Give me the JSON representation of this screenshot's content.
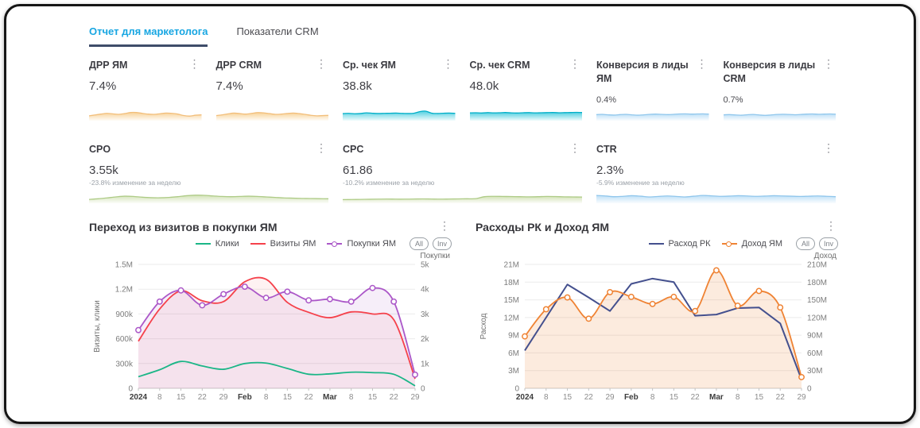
{
  "tabs": [
    {
      "label": "Отчет для маркетолога",
      "active": true
    },
    {
      "label": "Показатели CRM",
      "active": false
    }
  ],
  "kebab_icon": "⋮",
  "cards": [
    {
      "title": "ДРР ЯМ",
      "value": "7.4%",
      "spark": {
        "stroke": "#F2BE7A",
        "fill": "#F6C87F",
        "values": [
          28,
          35,
          42,
          48,
          44,
          40,
          46,
          55,
          55,
          48,
          42,
          40,
          45,
          50,
          48,
          42,
          30,
          26,
          33,
          36
        ]
      }
    },
    {
      "title": "ДРР CRM",
      "value": "7.4%",
      "spark": {
        "stroke": "#F2BE7A",
        "fill": "#F6C87F",
        "values": [
          30,
          36,
          44,
          50,
          46,
          42,
          48,
          54,
          52,
          46,
          40,
          42,
          47,
          50,
          46,
          40,
          32,
          28,
          30,
          32
        ]
      }
    },
    {
      "title": "Ср. чек ЯМ",
      "value": "38.8k",
      "spark": {
        "stroke": "#00AEC7",
        "fill": "#27C4D9",
        "values": [
          46,
          48,
          45,
          47,
          52,
          49,
          47,
          48,
          49,
          50,
          48,
          47,
          49,
          62,
          66,
          50,
          47,
          49,
          50,
          48
        ]
      }
    },
    {
      "title": "Ср. чек CRM",
      "value": "48.0k",
      "spark": {
        "stroke": "#00AEC7",
        "fill": "#27C4D9",
        "values": [
          52,
          53,
          51,
          54,
          52,
          53,
          55,
          52,
          51,
          53,
          54,
          52,
          53,
          54,
          55,
          53,
          54,
          55,
          56,
          55
        ]
      }
    },
    {
      "title": "Конверсия в лиды ЯМ",
      "value": "0.4%",
      "small_value": true,
      "spark": {
        "stroke": "#8FC6EC",
        "fill": "#AFD9F5",
        "values": [
          38,
          40,
          36,
          34,
          38,
          40,
          36,
          33,
          36,
          40,
          42,
          40,
          38,
          40,
          43,
          44,
          42,
          43,
          44,
          42
        ]
      }
    },
    {
      "title": "Конверсия в лиды CRM",
      "value": "0.7%",
      "small_value": true,
      "spark": {
        "stroke": "#8FC6EC",
        "fill": "#AFD9F5",
        "values": [
          36,
          38,
          35,
          33,
          37,
          39,
          35,
          32,
          35,
          39,
          41,
          39,
          37,
          39,
          42,
          43,
          41,
          42,
          43,
          41
        ]
      }
    },
    {
      "title": "CPO",
      "value": "3.55k",
      "delta": "-23.8% изменение за неделю",
      "wide": true,
      "spark": {
        "stroke": "#AECB86",
        "fill": "#C9DCA6",
        "values": [
          20,
          25,
          32,
          40,
          46,
          44,
          38,
          34,
          33,
          36,
          42,
          50,
          54,
          53,
          48,
          44,
          42,
          44,
          46,
          44,
          40,
          36,
          32,
          30,
          28,
          27,
          26,
          25
        ]
      }
    },
    {
      "title": "CPC",
      "value": "61.86",
      "delta": "-10.2% изменение за неделю",
      "wide": true,
      "spark": {
        "stroke": "#AECB86",
        "fill": "#C9DCA6",
        "values": [
          18,
          19,
          20,
          21,
          22,
          23,
          22,
          22,
          23,
          24,
          23,
          22,
          23,
          24,
          25,
          26,
          42,
          45,
          44,
          43,
          42,
          41,
          42,
          44,
          43,
          41,
          40,
          39
        ]
      }
    },
    {
      "title": "CTR",
      "value": "2.3%",
      "delta": "-5.9% изменение за неделю",
      "wide": true,
      "spark": {
        "stroke": "#8FC6EC",
        "fill": "#AFD9F5",
        "values": [
          52,
          48,
          42,
          45,
          50,
          46,
          40,
          44,
          48,
          44,
          40,
          46,
          52,
          49,
          45,
          47,
          50,
          48,
          45,
          47,
          50,
          48,
          46,
          44,
          46,
          48,
          45,
          42
        ]
      }
    }
  ],
  "chart_data": [
    {
      "type": "line",
      "title": "Переход из визитов в покупки ЯМ",
      "buttons": [
        "All",
        "Inv"
      ],
      "x_labels": [
        "2024",
        "8",
        "15",
        "22",
        "29",
        "Feb",
        "8",
        "15",
        "22",
        "Mar",
        "8",
        "15",
        "22",
        "29"
      ],
      "x_bold_indices": [
        0,
        5,
        9
      ],
      "left_axis": {
        "title": "Визиты, клики",
        "min": 0,
        "max": 1500000,
        "ticks": [
          "0",
          "300k",
          "600k",
          "900k",
          "1.2M",
          "1.5M"
        ]
      },
      "right_axis": {
        "title": "Покупки",
        "min": 0,
        "max": 5000,
        "ticks": [
          "0",
          "1k",
          "2k",
          "3k",
          "4k",
          "5k"
        ]
      },
      "series": [
        {
          "name": "Клики",
          "color": "#1BB687",
          "axis": "left",
          "smooth": true,
          "markers": false,
          "values": [
            140000,
            225000,
            325000,
            270000,
            230000,
            300000,
            305000,
            240000,
            170000,
            175000,
            195000,
            190000,
            170000,
            30000
          ]
        },
        {
          "name": "Визиты ЯМ",
          "color": "#F5414B",
          "axis": "left",
          "smooth": true,
          "markers": false,
          "area": "rgba(245,65,75,0.07)",
          "values": [
            570000,
            960000,
            1180000,
            1060000,
            1050000,
            1290000,
            1320000,
            1040000,
            920000,
            855000,
            925000,
            900000,
            830000,
            115000
          ]
        },
        {
          "name": "Покупки ЯМ",
          "color": "#AB57C8",
          "axis": "right",
          "smooth": true,
          "markers": true,
          "area": "rgba(171,87,200,0.10)",
          "values": [
            2350,
            3500,
            3950,
            3350,
            3800,
            4100,
            3650,
            3900,
            3550,
            3600,
            3500,
            4050,
            3500,
            550
          ]
        }
      ]
    },
    {
      "type": "line",
      "title": "Расходы РК и Доход ЯМ",
      "buttons": [
        "All",
        "Inv"
      ],
      "x_labels": [
        "2024",
        "8",
        "15",
        "22",
        "29",
        "Feb",
        "8",
        "15",
        "22",
        "Mar",
        "8",
        "15",
        "22",
        "29"
      ],
      "x_bold_indices": [
        0,
        5,
        9
      ],
      "left_axis": {
        "title": "Расход",
        "min": 0,
        "max": 21000000,
        "ticks": [
          "0",
          "3M",
          "6M",
          "9M",
          "12M",
          "15M",
          "18M",
          "21M"
        ]
      },
      "right_axis": {
        "title": "Доход",
        "min": 0,
        "max": 210000000,
        "ticks": [
          "0",
          "30M",
          "60M",
          "90M",
          "120M",
          "150M",
          "180M",
          "210M"
        ]
      },
      "series": [
        {
          "name": "Расход РК",
          "color": "#44508E",
          "axis": "left",
          "smooth": false,
          "markers": false,
          "values": [
            6400000,
            12000000,
            17600000,
            15400000,
            13100000,
            17700000,
            18600000,
            18000000,
            12300000,
            12500000,
            13600000,
            13700000,
            11000000,
            1500000
          ]
        },
        {
          "name": "Доход ЯМ",
          "color": "#EF8334",
          "axis": "right",
          "smooth": true,
          "markers": true,
          "area": "rgba(239,131,52,0.16)",
          "values": [
            88000000,
            134000000,
            154000000,
            118000000,
            163000000,
            155000000,
            143000000,
            155000000,
            131000000,
            200000000,
            140000000,
            165000000,
            137000000,
            19000000
          ]
        }
      ]
    }
  ]
}
